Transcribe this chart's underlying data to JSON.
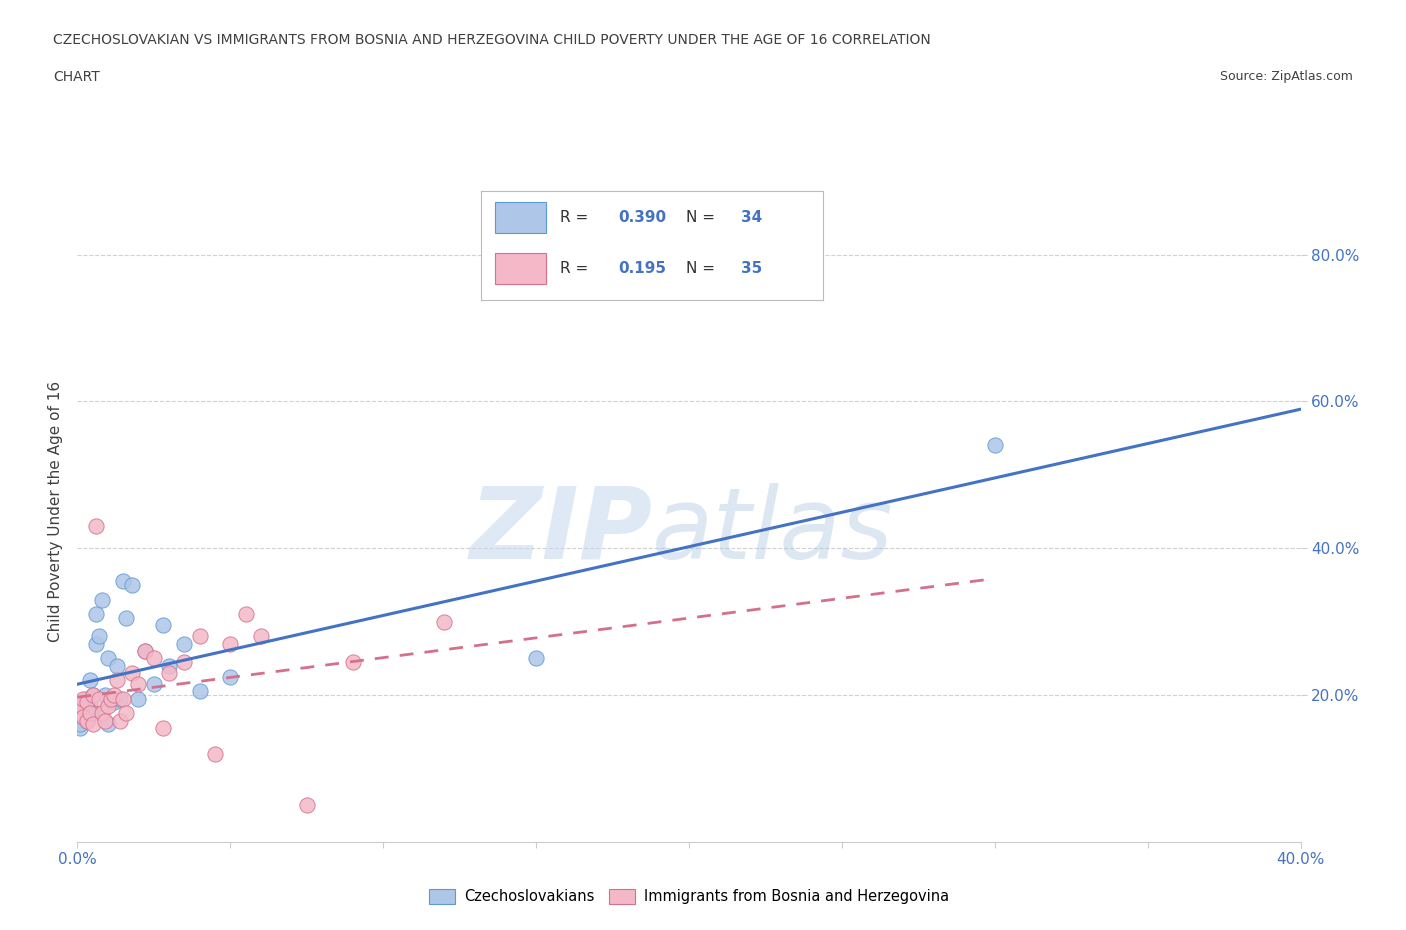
{
  "title_line1": "CZECHOSLOVAKIAN VS IMMIGRANTS FROM BOSNIA AND HERZEGOVINA CHILD POVERTY UNDER THE AGE OF 16 CORRELATION",
  "title_line2": "CHART",
  "source": "Source: ZipAtlas.com",
  "ylabel": "Child Poverty Under the Age of 16",
  "xlim": [
    0.0,
    0.4
  ],
  "ylim": [
    0.0,
    0.9
  ],
  "xticks": [
    0.0,
    0.05,
    0.1,
    0.15,
    0.2,
    0.25,
    0.3,
    0.35,
    0.4
  ],
  "xtick_labels": [
    "0.0%",
    "",
    "",
    "",
    "",
    "",
    "",
    "",
    "40.0%"
  ],
  "ytick_positions": [
    0.2,
    0.4,
    0.6,
    0.8
  ],
  "ytick_labels": [
    "20.0%",
    "40.0%",
    "60.0%",
    "80.0%"
  ],
  "watermark_zip": "ZIP",
  "watermark_atlas": "atlas",
  "blue_color": "#aec6e8",
  "blue_edge": "#5b9bd5",
  "pink_color": "#f4b8c8",
  "pink_edge": "#d4708a",
  "blue_line_color": "#4472c4",
  "pink_line_color": "#d4708a",
  "R_blue": 0.39,
  "N_blue": 34,
  "R_pink": 0.195,
  "N_pink": 35,
  "legend_label_blue": "Czechoslovakians",
  "legend_label_pink": "Immigrants from Bosnia and Herzegovina",
  "blue_scatter_x": [
    0.001,
    0.001,
    0.002,
    0.002,
    0.003,
    0.003,
    0.004,
    0.004,
    0.005,
    0.005,
    0.006,
    0.006,
    0.007,
    0.008,
    0.009,
    0.01,
    0.01,
    0.011,
    0.012,
    0.013,
    0.014,
    0.015,
    0.016,
    0.018,
    0.02,
    0.022,
    0.025,
    0.028,
    0.03,
    0.035,
    0.04,
    0.05,
    0.3,
    0.15
  ],
  "blue_scatter_y": [
    0.155,
    0.16,
    0.17,
    0.175,
    0.165,
    0.195,
    0.185,
    0.22,
    0.175,
    0.2,
    0.27,
    0.31,
    0.28,
    0.33,
    0.2,
    0.16,
    0.25,
    0.195,
    0.19,
    0.24,
    0.195,
    0.355,
    0.305,
    0.35,
    0.195,
    0.26,
    0.215,
    0.295,
    0.24,
    0.27,
    0.205,
    0.225,
    0.54,
    0.25
  ],
  "pink_scatter_x": [
    0.001,
    0.001,
    0.002,
    0.002,
    0.003,
    0.003,
    0.004,
    0.005,
    0.005,
    0.006,
    0.007,
    0.008,
    0.009,
    0.01,
    0.011,
    0.012,
    0.013,
    0.014,
    0.015,
    0.016,
    0.018,
    0.02,
    0.022,
    0.025,
    0.028,
    0.03,
    0.035,
    0.04,
    0.045,
    0.05,
    0.055,
    0.06,
    0.075,
    0.09,
    0.12
  ],
  "pink_scatter_y": [
    0.175,
    0.185,
    0.17,
    0.195,
    0.165,
    0.19,
    0.175,
    0.2,
    0.16,
    0.43,
    0.195,
    0.175,
    0.165,
    0.185,
    0.195,
    0.2,
    0.22,
    0.165,
    0.195,
    0.175,
    0.23,
    0.215,
    0.26,
    0.25,
    0.155,
    0.23,
    0.245,
    0.28,
    0.12,
    0.27,
    0.31,
    0.28,
    0.05,
    0.245,
    0.3
  ],
  "grid_color": "#cccccc",
  "title_color": "#404040",
  "tick_label_color": "#4472c4",
  "background_color": "#ffffff"
}
